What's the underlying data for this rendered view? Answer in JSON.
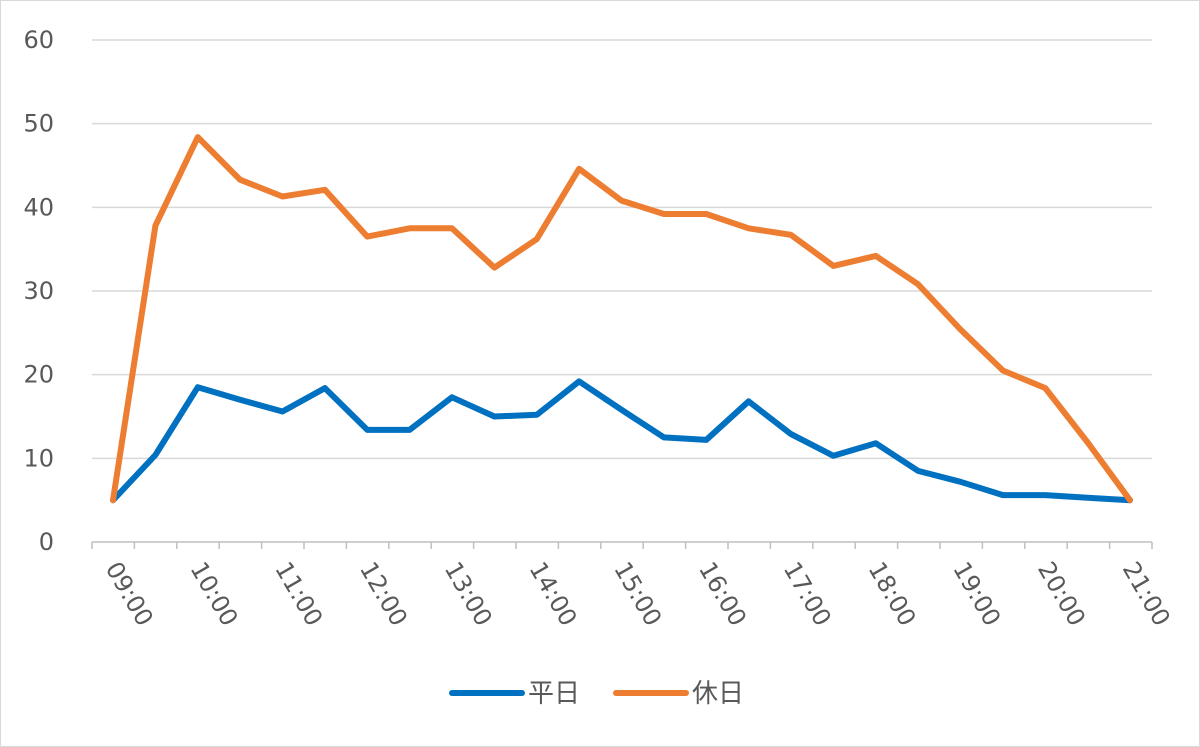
{
  "chart_data": {
    "type": "line",
    "title": "",
    "xlabel": "",
    "ylabel": "",
    "x_tick_labels": [
      "09:00",
      "10:00",
      "11:00",
      "12:00",
      "13:00",
      "14:00",
      "15:00",
      "16:00",
      "17:00",
      "18:00",
      "19:00",
      "20:00",
      "21:00"
    ],
    "y_tick_labels": [
      "0",
      "10",
      "20",
      "30",
      "40",
      "50",
      "60"
    ],
    "ylim": [
      0,
      60
    ],
    "grid": true,
    "legend_placement": "bottom",
    "x": [
      "09:00",
      "09:30",
      "10:00",
      "10:30",
      "11:00",
      "11:30",
      "12:00",
      "12:30",
      "13:00",
      "13:30",
      "14:00",
      "14:30",
      "15:00",
      "15:30",
      "16:00",
      "16:30",
      "17:00",
      "17:30",
      "18:00",
      "18:30",
      "19:00",
      "19:30",
      "20:00",
      "20:30",
      "21:00"
    ],
    "series": [
      {
        "name": "平日",
        "color": "#0070c0",
        "values": [
          5,
          10.4,
          18.5,
          17,
          15.6,
          18.4,
          13.4,
          13.4,
          17.3,
          15,
          15.2,
          19.2,
          15.8,
          12.5,
          12.2,
          16.8,
          12.9,
          10.3,
          11.8,
          8.5,
          7.2,
          5.6,
          5.6,
          5.3,
          5.0
        ]
      },
      {
        "name": "休日",
        "color": "#ed7d31",
        "values": [
          5,
          37.8,
          48.4,
          43.3,
          41.3,
          42.1,
          36.5,
          37.5,
          37.5,
          32.8,
          36.2,
          44.6,
          40.8,
          39.2,
          39.2,
          37.5,
          36.7,
          33,
          34.2,
          30.8,
          25.4,
          20.5,
          18.4,
          11.9,
          5.0
        ]
      }
    ]
  }
}
